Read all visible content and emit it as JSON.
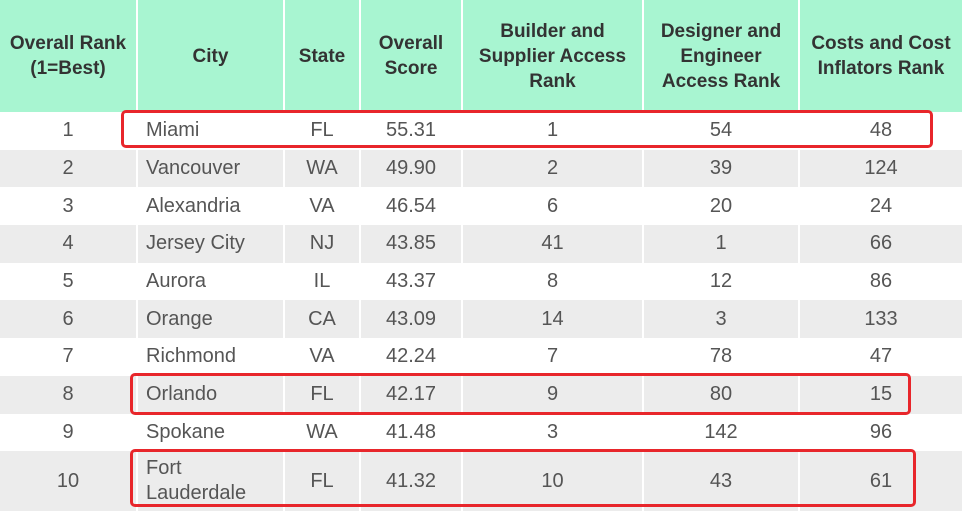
{
  "headers": [
    "Overall Rank (1=Best)",
    "City",
    "State",
    "Overall Score",
    "Builder and Supplier Access Rank",
    "Designer and Engineer Access Rank",
    "Costs and Cost Inflators Rank"
  ],
  "rows": [
    [
      "1",
      "Miami",
      "FL",
      "55.31",
      "1",
      "54",
      "48"
    ],
    [
      "2",
      "Vancouver",
      "WA",
      "49.90",
      "2",
      "39",
      "124"
    ],
    [
      "3",
      "Alexandria",
      "VA",
      "46.54",
      "6",
      "20",
      "24"
    ],
    [
      "4",
      "Jersey City",
      "NJ",
      "43.85",
      "41",
      "1",
      "66"
    ],
    [
      "5",
      "Aurora",
      "IL",
      "43.37",
      "8",
      "12",
      "86"
    ],
    [
      "6",
      "Orange",
      "CA",
      "43.09",
      "14",
      "3",
      "133"
    ],
    [
      "7",
      "Richmond",
      "VA",
      "42.24",
      "7",
      "78",
      "47"
    ],
    [
      "8",
      "Orlando",
      "FL",
      "42.17",
      "9",
      "80",
      "15"
    ],
    [
      "9",
      "Spokane",
      "WA",
      "41.48",
      "3",
      "142",
      "96"
    ],
    [
      "10",
      "Fort Lauderdale",
      "FL",
      "41.32",
      "10",
      "43",
      "61"
    ]
  ],
  "colors": {
    "header_bg": "#a8f5d1",
    "stripe_bg": "#ececec",
    "highlight": "#e8262b"
  }
}
